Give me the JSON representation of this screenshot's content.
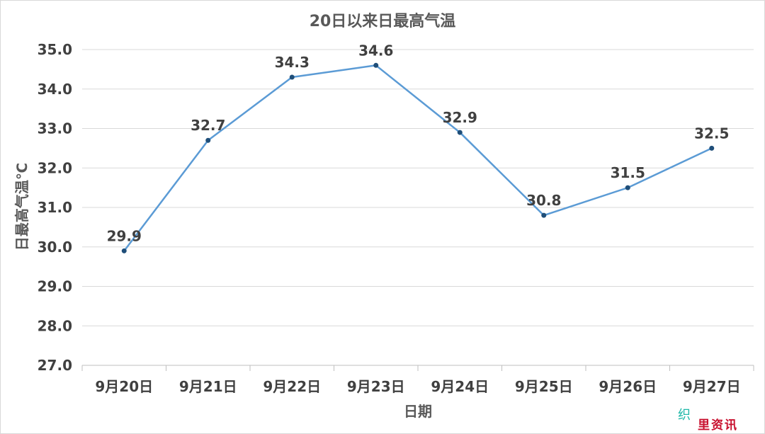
{
  "chart_data": {
    "type": "line",
    "title": "20日以来日最高气温",
    "xlabel": "日期",
    "ylabel": "日最高气温℃",
    "categories": [
      "9月20日",
      "9月21日",
      "9月22日",
      "9月23日",
      "9月24日",
      "9月25日",
      "9月26日",
      "9月27日"
    ],
    "series": [
      {
        "values": [
          29.9,
          32.7,
          34.3,
          34.6,
          32.9,
          30.8,
          31.5,
          32.5
        ],
        "labels": [
          "29.9",
          "32.7",
          "34.3",
          "34.6",
          "32.9",
          "30.8",
          "31.5",
          "32.5"
        ]
      }
    ],
    "ylim": [
      27.0,
      35.0
    ],
    "yticks": [
      "27.0",
      "28.0",
      "29.0",
      "30.0",
      "31.0",
      "32.0",
      "33.0",
      "34.0",
      "35.0"
    ],
    "grid": true,
    "legend": "none",
    "colors": {
      "line": "#5b9bd5",
      "marker": "#1f4e79",
      "grid": "#d9d9d9",
      "text": "#404040",
      "title": "#595959"
    }
  },
  "watermark": {
    "char1": "织",
    "text2": "里资讯"
  }
}
